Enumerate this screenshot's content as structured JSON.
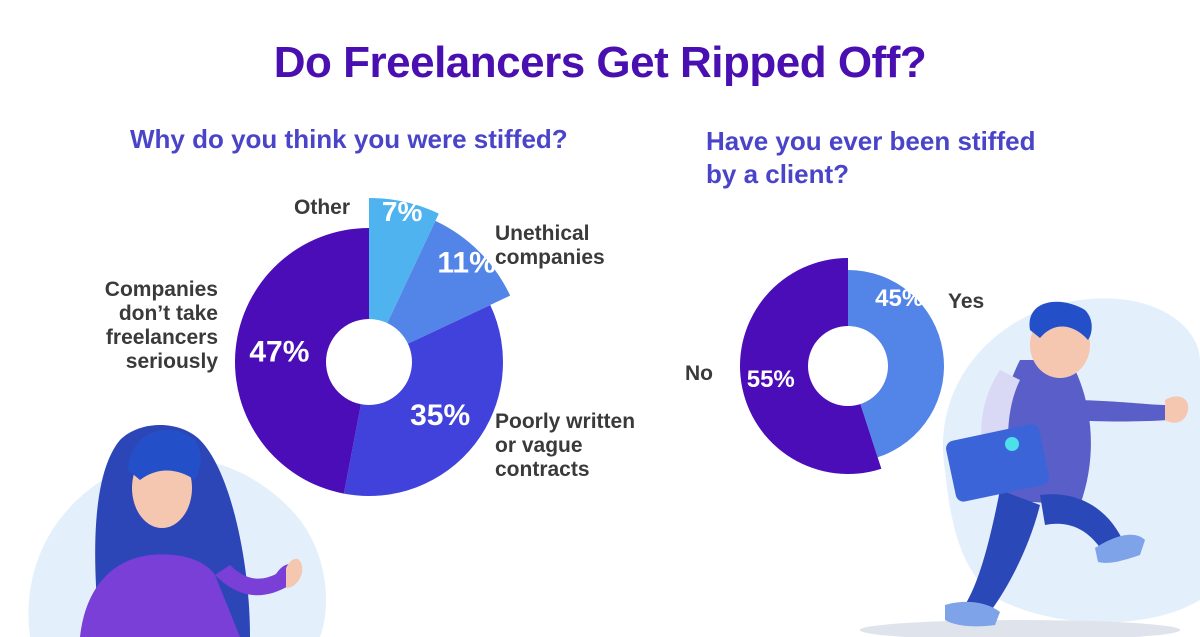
{
  "title": "Do Freelancers Get Ripped Off?",
  "colors": {
    "title": "#4a0fb0",
    "subtitle": "#4a44c9",
    "dark_purple": "#4a0db8",
    "blue_purple": "#4141dc",
    "mid_blue": "#5384e8",
    "light_blue": "#4fb3ef",
    "label": "#3a3a3a"
  },
  "chart_data": [
    {
      "type": "pie",
      "title": "Why do you think you were stiffed?",
      "categories": [
        "Other",
        "Unethical companies",
        "Poorly written or vague contracts",
        "Companies don’t take freelancers seriously"
      ],
      "values": [
        7,
        11,
        35,
        47
      ],
      "value_labels": [
        "7%",
        "11%",
        "35%",
        "47%"
      ],
      "label_lines": {
        "other": [
          "Other"
        ],
        "unethical": [
          "Unethical",
          "companies"
        ],
        "poorly": [
          "Poorly written",
          "or vague",
          "contracts"
        ],
        "companies": [
          "Companies",
          "don’t take",
          "freelancers",
          "seriously"
        ]
      },
      "donut": true
    },
    {
      "type": "pie",
      "title": "Have you ever been stiffed by a client?",
      "title_lines": [
        "Have you ever been stiffed",
        "by a client?"
      ],
      "categories": [
        "Yes",
        "No"
      ],
      "values": [
        45,
        55
      ],
      "value_labels": [
        "45%",
        "55%"
      ],
      "donut": true
    }
  ]
}
